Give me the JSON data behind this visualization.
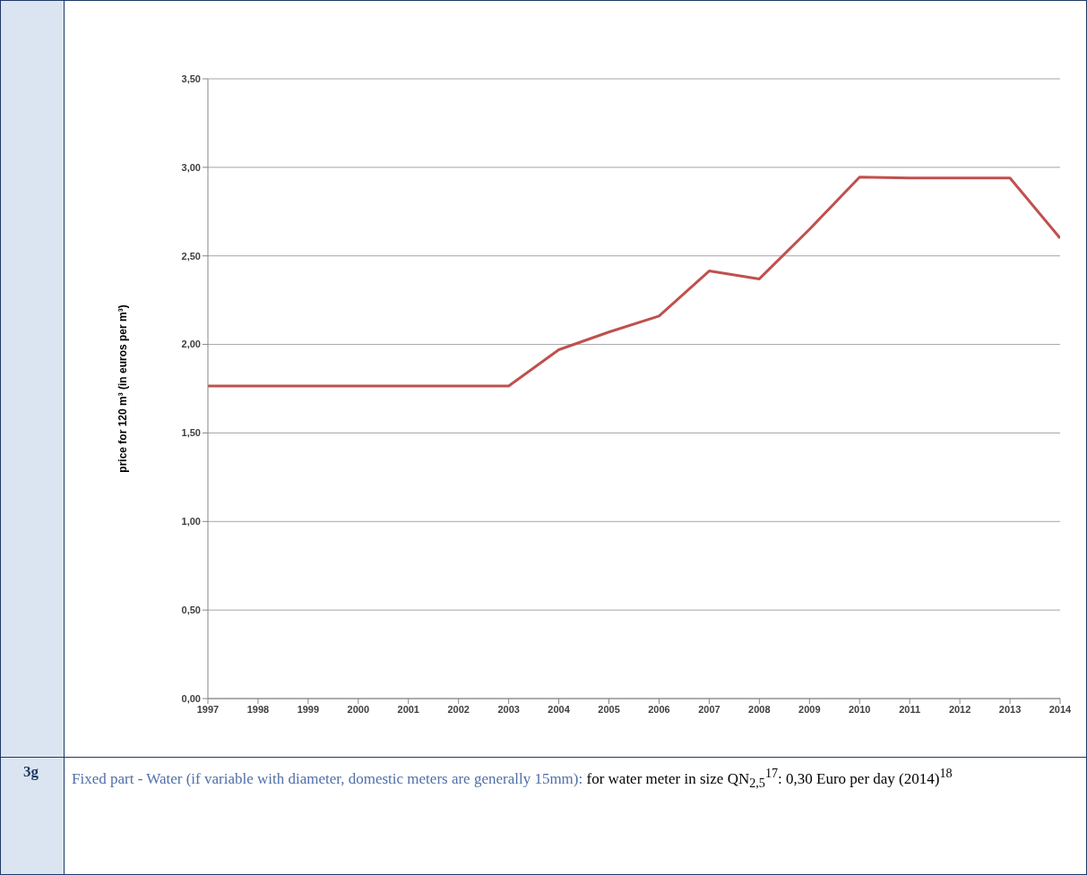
{
  "chart_data": {
    "type": "line",
    "ylabel": "price for 120 m³ (in euros per m³)",
    "x": [
      1997,
      1998,
      1999,
      2000,
      2001,
      2002,
      2003,
      2004,
      2005,
      2006,
      2007,
      2008,
      2009,
      2010,
      2011,
      2012,
      2013,
      2014
    ],
    "series": [
      {
        "color": "#c0504d",
        "values": [
          1.765,
          1.765,
          1.765,
          1.765,
          1.765,
          1.765,
          1.765,
          1.97,
          2.07,
          2.16,
          2.415,
          2.37,
          2.65,
          2.945,
          2.94,
          2.94,
          2.94,
          2.6
        ]
      }
    ],
    "xlim": [
      1997,
      2014
    ],
    "xticks": [
      1997,
      1998,
      1999,
      2000,
      2001,
      2002,
      2003,
      2004,
      2005,
      2006,
      2007,
      2008,
      2009,
      2010,
      2011,
      2012,
      2013,
      2014
    ],
    "ylim": [
      0,
      3.5
    ],
    "yticks": [
      {
        "value": 0,
        "label": "0,00"
      },
      {
        "value": 0.5,
        "label": "0,50"
      },
      {
        "value": 1,
        "label": "1,00"
      },
      {
        "value": 1.5,
        "label": "1,50"
      },
      {
        "value": 2,
        "label": "2,00"
      },
      {
        "value": 2.5,
        "label": "2,50"
      },
      {
        "value": 3,
        "label": "3,00"
      },
      {
        "value": 3.5,
        "label": "3,50"
      }
    ],
    "grid": "y",
    "marker": "none",
    "line_style": "solid",
    "legend": false,
    "annotations": [
      "3g",
      "Fixed part - Water (if variable with diameter, domestic meters are generally 15mm):",
      "for water meter in size QN$_{2,5}$$^{17}$: 0,30 Euro per day (2014)$^{18}$"
    ]
  }
}
